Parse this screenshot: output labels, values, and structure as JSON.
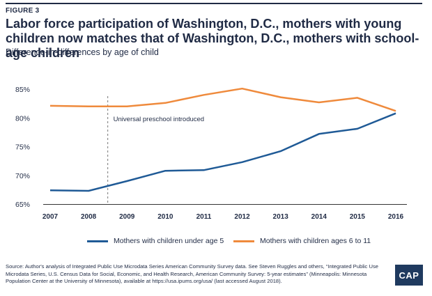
{
  "figure_label": "FIGURE 3",
  "title": "Labor force participation of Washington, D.C., mothers with young children now matches that of Washington, D.C., mothers with school-age children",
  "subtitle": "Difference-in-differences by age of child",
  "legend": {
    "series1": "Mothers with children under age 5",
    "series2": "Mothers with children ages 6 to 11"
  },
  "source": "Source: Author's analysis of Integrated Public Use Microdata Series American Community Survey data. See Steven Ruggles and others, “Integrated Public Use Microdata Series, U.S. Census Data for Social, Economic, and Health Research, American Community Survey: 5-year estimates” (Minneapolis: Minnesota Population Center at the University of Minnesota), available at https://usa.ipums.org/usa/ (last accessed August 2018).",
  "logo_text": "CAP",
  "colors": {
    "series1": "#1f5a96",
    "series2": "#ef8a3c",
    "text": "#1f2a44",
    "axis": "#333333"
  },
  "chart_data": {
    "type": "line",
    "x": [
      "2007",
      "2008",
      "2009",
      "2010",
      "2011",
      "2012",
      "2013",
      "2014",
      "2015",
      "2016"
    ],
    "series": [
      {
        "name": "Mothers with children under age 5",
        "values": [
          67.4,
          67.3,
          69.0,
          70.8,
          70.9,
          72.3,
          74.2,
          77.2,
          78.1,
          80.8
        ]
      },
      {
        "name": "Mothers with children ages 6 to 11",
        "values": [
          82.1,
          82.0,
          82.0,
          82.6,
          84.0,
          85.1,
          83.6,
          82.7,
          83.5,
          81.2
        ]
      }
    ],
    "yticks": [
      "65%",
      "70%",
      "75%",
      "80%",
      "85%"
    ],
    "ytick_values": [
      65,
      70,
      75,
      80,
      85
    ],
    "ylim": [
      65,
      85
    ],
    "annotation": {
      "text": "Universal preschool introduced",
      "x": 2008.5
    },
    "title": "Labor force participation of Washington, D.C., mothers with young children now matches that of Washington, D.C., mothers with school-age children",
    "ylabel": "",
    "xlabel": "",
    "grid": false,
    "legend_position": "bottom"
  }
}
